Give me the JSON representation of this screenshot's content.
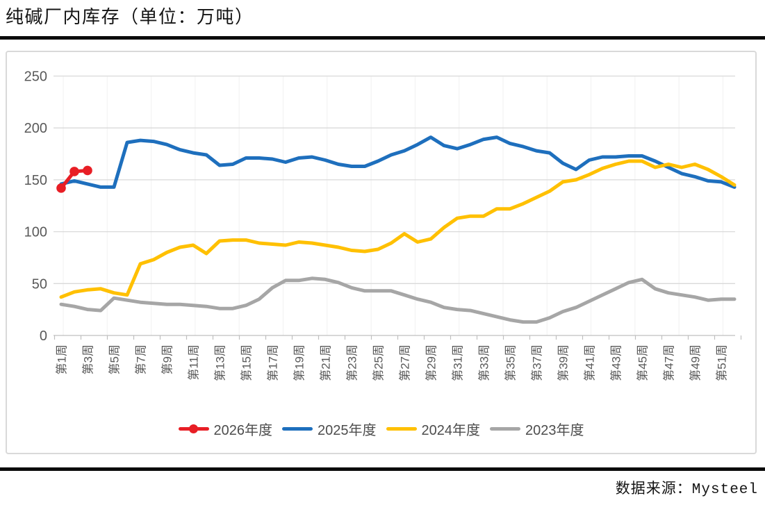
{
  "header": {
    "title": "纯碱厂内库存（单位：万吨）"
  },
  "footer": {
    "source": "数据来源：Mysteel"
  },
  "colors": {
    "red_2026": "#e81e25",
    "blue_2025": "#1e6fbd",
    "yellow_2024": "#ffc000",
    "gray_2023": "#a6a6a6",
    "gridline": "#d9d9d9",
    "axis_line": "#bfbfbf",
    "axis_text": "#595959",
    "rule": "#0a0a0a"
  },
  "chart_data": {
    "type": "line",
    "title": "纯碱厂内库存（单位：万吨）",
    "ylabel": "",
    "xlabel": "",
    "unit": "万吨",
    "ylim": [
      0,
      250
    ],
    "yticks": [
      0,
      50,
      100,
      150,
      200,
      250
    ],
    "grid": "horizontal",
    "legend_position": "bottom",
    "x_tick_label_every": 2,
    "categories": [
      "第1周",
      "第2周",
      "第3周",
      "第4周",
      "第5周",
      "第6周",
      "第7周",
      "第8周",
      "第9周",
      "第10周",
      "第11周",
      "第12周",
      "第13周",
      "第14周",
      "第15周",
      "第16周",
      "第17周",
      "第18周",
      "第19周",
      "第20周",
      "第21周",
      "第22周",
      "第23周",
      "第24周",
      "第25周",
      "第26周",
      "第27周",
      "第28周",
      "第29周",
      "第30周",
      "第31周",
      "第32周",
      "第33周",
      "第34周",
      "第35周",
      "第36周",
      "第37周",
      "第38周",
      "第39周",
      "第40周",
      "第41周",
      "第42周",
      "第43周",
      "第44周",
      "第45周",
      "第46周",
      "第47周",
      "第48周",
      "第49周",
      "第50周",
      "第51周",
      "第52周"
    ],
    "series": [
      {
        "name": "2026年度",
        "color": "#e81e25",
        "marker": true,
        "start_week": 1,
        "values": [
          142,
          158,
          159
        ]
      },
      {
        "name": "2025年度",
        "color": "#1e6fbd",
        "marker": false,
        "start_week": 1,
        "values": [
          146,
          149,
          146,
          143,
          143,
          186,
          188,
          187,
          184,
          179,
          176,
          174,
          164,
          165,
          171,
          171,
          170,
          167,
          171,
          172,
          169,
          165,
          163,
          163,
          168,
          174,
          178,
          184,
          191,
          183,
          180,
          184,
          189,
          191,
          185,
          182,
          178,
          176,
          166,
          160,
          169,
          172,
          172,
          173,
          173,
          168,
          162,
          156,
          153,
          149,
          148,
          143
        ]
      },
      {
        "name": "2024年度",
        "color": "#ffc000",
        "marker": false,
        "start_week": 1,
        "values": [
          37,
          42,
          44,
          45,
          41,
          39,
          69,
          73,
          80,
          85,
          87,
          79,
          91,
          92,
          92,
          89,
          88,
          87,
          90,
          89,
          87,
          85,
          82,
          81,
          83,
          89,
          98,
          90,
          93,
          104,
          113,
          115,
          115,
          122,
          122,
          127,
          133,
          139,
          148,
          150,
          155,
          161,
          165,
          168,
          168,
          162,
          165,
          162,
          165,
          160,
          153,
          145
        ]
      },
      {
        "name": "2023年度",
        "color": "#a6a6a6",
        "marker": false,
        "start_week": 1,
        "values": [
          30,
          28,
          25,
          24,
          36,
          34,
          32,
          31,
          30,
          30,
          29,
          28,
          26,
          26,
          29,
          35,
          46,
          53,
          53,
          55,
          54,
          51,
          46,
          43,
          43,
          43,
          39,
          35,
          32,
          27,
          25,
          24,
          21,
          18,
          15,
          13,
          13,
          17,
          23,
          27,
          33,
          39,
          45,
          51,
          54,
          45,
          41,
          39,
          37,
          34,
          35,
          35
        ]
      }
    ]
  }
}
